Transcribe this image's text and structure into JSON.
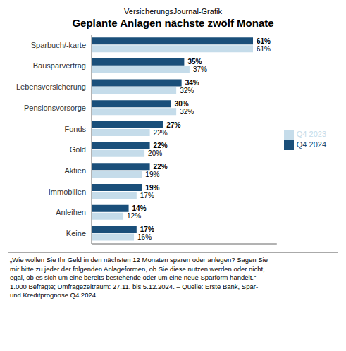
{
  "chart_data": {
    "type": "bar",
    "orientation": "horizontal",
    "subtitle": "VersicherungsJournal-Grafik",
    "title": "Geplante Anlagen nächste zwölf Monate",
    "categories": [
      "Sparbuch/-karte",
      "Bausparvertrag",
      "Lebensversicherung",
      "Pensionsvorsorge",
      "Fonds",
      "Gold",
      "Aktien",
      "Immobilien",
      "Anleihen",
      "Keine"
    ],
    "series": [
      {
        "name": "Q4 2024",
        "color": "#1a4f7a",
        "values": [
          61,
          35,
          34,
          30,
          27,
          22,
          22,
          19,
          14,
          17
        ],
        "value_labels": [
          "61%",
          "35%",
          "34%",
          "30%",
          "27%",
          "22%",
          "22%",
          "19%",
          "14%",
          "17%"
        ]
      },
      {
        "name": "Q4 2023",
        "color": "#c5dcea",
        "values": [
          61,
          37,
          32,
          32,
          22,
          20,
          19,
          17,
          12,
          16
        ],
        "value_labels": [
          "61%",
          "37%",
          "32%",
          "32%",
          "22%",
          "20%",
          "19%",
          "17%",
          "12%",
          "16%"
        ]
      }
    ],
    "xlim": [
      0,
      70
    ],
    "grid": false,
    "legend": "right",
    "data_labels": true,
    "tick_labels": "y",
    "footnote": "„Wie wollen Sie Ihr Geld in den nächsten 12 Monaten sparen oder anlegen? Sagen Sie\nmir bitte zu jeder der folgenden Anlageformen, ob Sie diese nutzen werden oder nicht,\negal, ob es sich um eine bereits bestehende oder um eine neue Sparform handelt.“ –\n1.000 Befragte; Umfragezeitraum: 27.11. bis 5.12.2024. – Quelle: Erste Bank, Spar-\nund Kreditprognose Q4 2024."
  }
}
